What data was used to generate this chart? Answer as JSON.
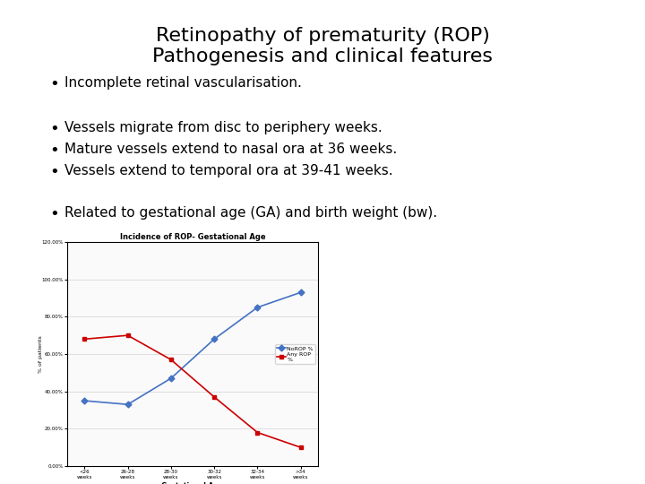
{
  "title_line1": "Retinopathy of prematurity (ROP)",
  "title_line2": "Pathogenesis and clinical features",
  "bullet1": "Incomplete retinal vascularisation.",
  "bullet2": "Vessels migrate from disc to periphery weeks.",
  "bullet3": "Mature vessels extend to nasal ora at 36 weeks.",
  "bullet4": "Vessels extend to temporal ora at 39-41 weeks.",
  "bullet5": "Related to gestational age (GA) and birth weight (bw).",
  "chart_title": "Incidence of ROP- Gestational Age",
  "chart_xlabel": "Gestational Age",
  "chart_ylabel": "% of patients",
  "chart_categories": [
    "<26\nweeks",
    "26-28\nweeks",
    "28-30\nweeks",
    "30-32\nweeks",
    "32-34\nweeks",
    ">34\nweeks"
  ],
  "no_rop": [
    35,
    33,
    47,
    68,
    85,
    93
  ],
  "any_rop": [
    68,
    70,
    57,
    37,
    18,
    10
  ],
  "no_rop_color": "#4472C4",
  "any_rop_color": "#CC0000",
  "bg_color": "#FFFFFF",
  "text_color": "#000000",
  "title_fontsize": 16,
  "bullet_fontsize": 11,
  "chart_yticks": [
    0,
    20,
    40,
    60,
    80,
    100,
    120
  ]
}
